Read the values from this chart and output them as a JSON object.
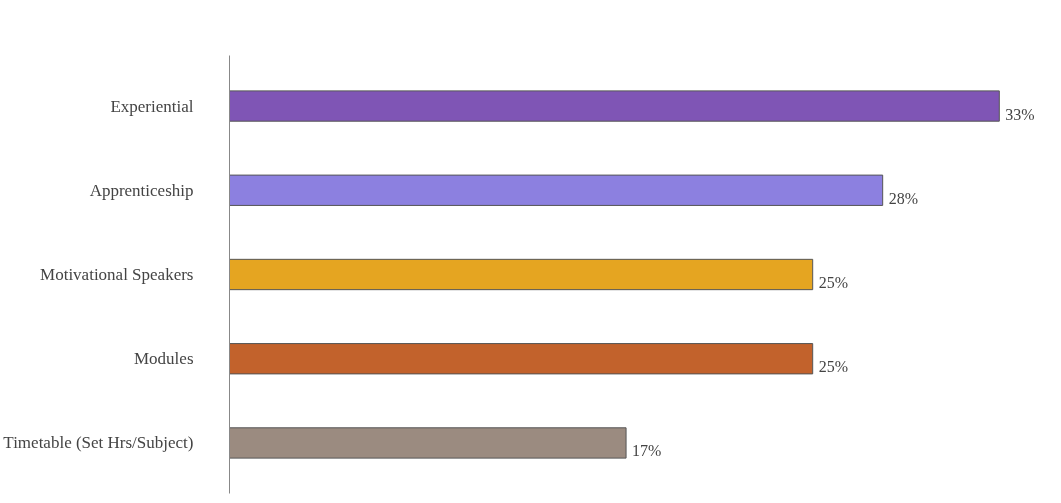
{
  "chart_data": {
    "type": "bar",
    "orientation": "horizontal",
    "categories": [
      "Experiential",
      "Apprenticeship",
      "Motivational Speakers",
      "Modules",
      "Timetable (Set Hrs/Subject)"
    ],
    "values": [
      33,
      28,
      25,
      25,
      17
    ],
    "colors": [
      "#7f55b5",
      "#8c80e0",
      "#e5a521",
      "#c2622c",
      "#9b8b80"
    ],
    "value_labels": [
      "33%",
      "28%",
      "25%",
      "25%",
      "17%"
    ],
    "tick_labels": "y"
  }
}
